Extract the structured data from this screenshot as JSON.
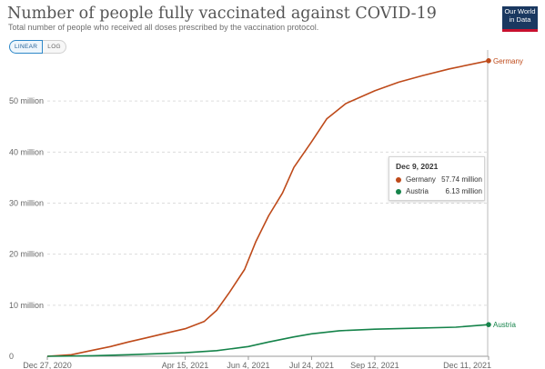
{
  "header": {
    "title": "Number of people fully vaccinated against COVID-19",
    "subtitle": "Total number of people who received all doses prescribed by the vaccination protocol.",
    "logo_line1": "Our World",
    "logo_line2": "in Data"
  },
  "controls": {
    "linear_label": "LINEAR",
    "log_label": "LOG"
  },
  "tooltip": {
    "date": "Dec 9, 2021",
    "rows": [
      {
        "name": "Germany",
        "value": "57.74 million",
        "color": "#be4a1a"
      },
      {
        "name": "Austria",
        "value": "6.13 million",
        "color": "#15834a"
      }
    ]
  },
  "chart_data": {
    "type": "line",
    "title": "Number of people fully vaccinated against COVID-19",
    "subtitle": "Total number of people who received all doses prescribed by the vaccination protocol.",
    "x_tick_labels": [
      "Dec 27, 2020",
      "Apr 15, 2021",
      "Jun 4, 2021",
      "Jul 24, 2021",
      "Sep 12, 2021",
      "Dec 11, 2021"
    ],
    "x_ticks": [
      "2020-12-27",
      "2021-04-15",
      "2021-06-04",
      "2021-07-24",
      "2021-09-12",
      "2021-12-11"
    ],
    "xlim": [
      "2020-12-27",
      "2021-12-11"
    ],
    "y_ticks": [
      0,
      10,
      20,
      30,
      40,
      50
    ],
    "y_tick_labels": [
      "0",
      "10 million",
      "20 million",
      "30 million",
      "40 million",
      "50 million"
    ],
    "ylim": [
      0,
      60
    ],
    "y_unit": "million",
    "grid": "horizontal dashed",
    "series": [
      {
        "name": "Germany",
        "color": "#be4a1a",
        "points": [
          [
            "2020-12-27",
            0
          ],
          [
            "2021-01-15",
            0.3
          ],
          [
            "2021-02-01",
            1.2
          ],
          [
            "2021-02-15",
            1.9
          ],
          [
            "2021-03-01",
            2.8
          ],
          [
            "2021-03-15",
            3.6
          ],
          [
            "2021-04-01",
            4.6
          ],
          [
            "2021-04-15",
            5.4
          ],
          [
            "2021-04-30",
            6.8
          ],
          [
            "2021-05-10",
            9.0
          ],
          [
            "2021-05-20",
            12.5
          ],
          [
            "2021-06-01",
            17.0
          ],
          [
            "2021-06-10",
            22.5
          ],
          [
            "2021-06-20",
            27.5
          ],
          [
            "2021-07-01",
            32.0
          ],
          [
            "2021-07-10",
            37.0
          ],
          [
            "2021-07-24",
            42.0
          ],
          [
            "2021-08-05",
            46.5
          ],
          [
            "2021-08-20",
            49.5
          ],
          [
            "2021-09-12",
            52.0
          ],
          [
            "2021-10-01",
            53.7
          ],
          [
            "2021-10-20",
            55.0
          ],
          [
            "2021-11-10",
            56.3
          ],
          [
            "2021-12-11",
            57.9
          ]
        ]
      },
      {
        "name": "Austria",
        "color": "#15834a",
        "points": [
          [
            "2020-12-27",
            0
          ],
          [
            "2021-02-01",
            0.1
          ],
          [
            "2021-03-01",
            0.3
          ],
          [
            "2021-04-15",
            0.7
          ],
          [
            "2021-05-10",
            1.1
          ],
          [
            "2021-06-04",
            1.9
          ],
          [
            "2021-06-20",
            2.8
          ],
          [
            "2021-07-10",
            3.8
          ],
          [
            "2021-07-24",
            4.4
          ],
          [
            "2021-08-15",
            5.0
          ],
          [
            "2021-09-12",
            5.3
          ],
          [
            "2021-10-15",
            5.5
          ],
          [
            "2021-11-15",
            5.7
          ],
          [
            "2021-12-11",
            6.2
          ]
        ]
      }
    ]
  }
}
